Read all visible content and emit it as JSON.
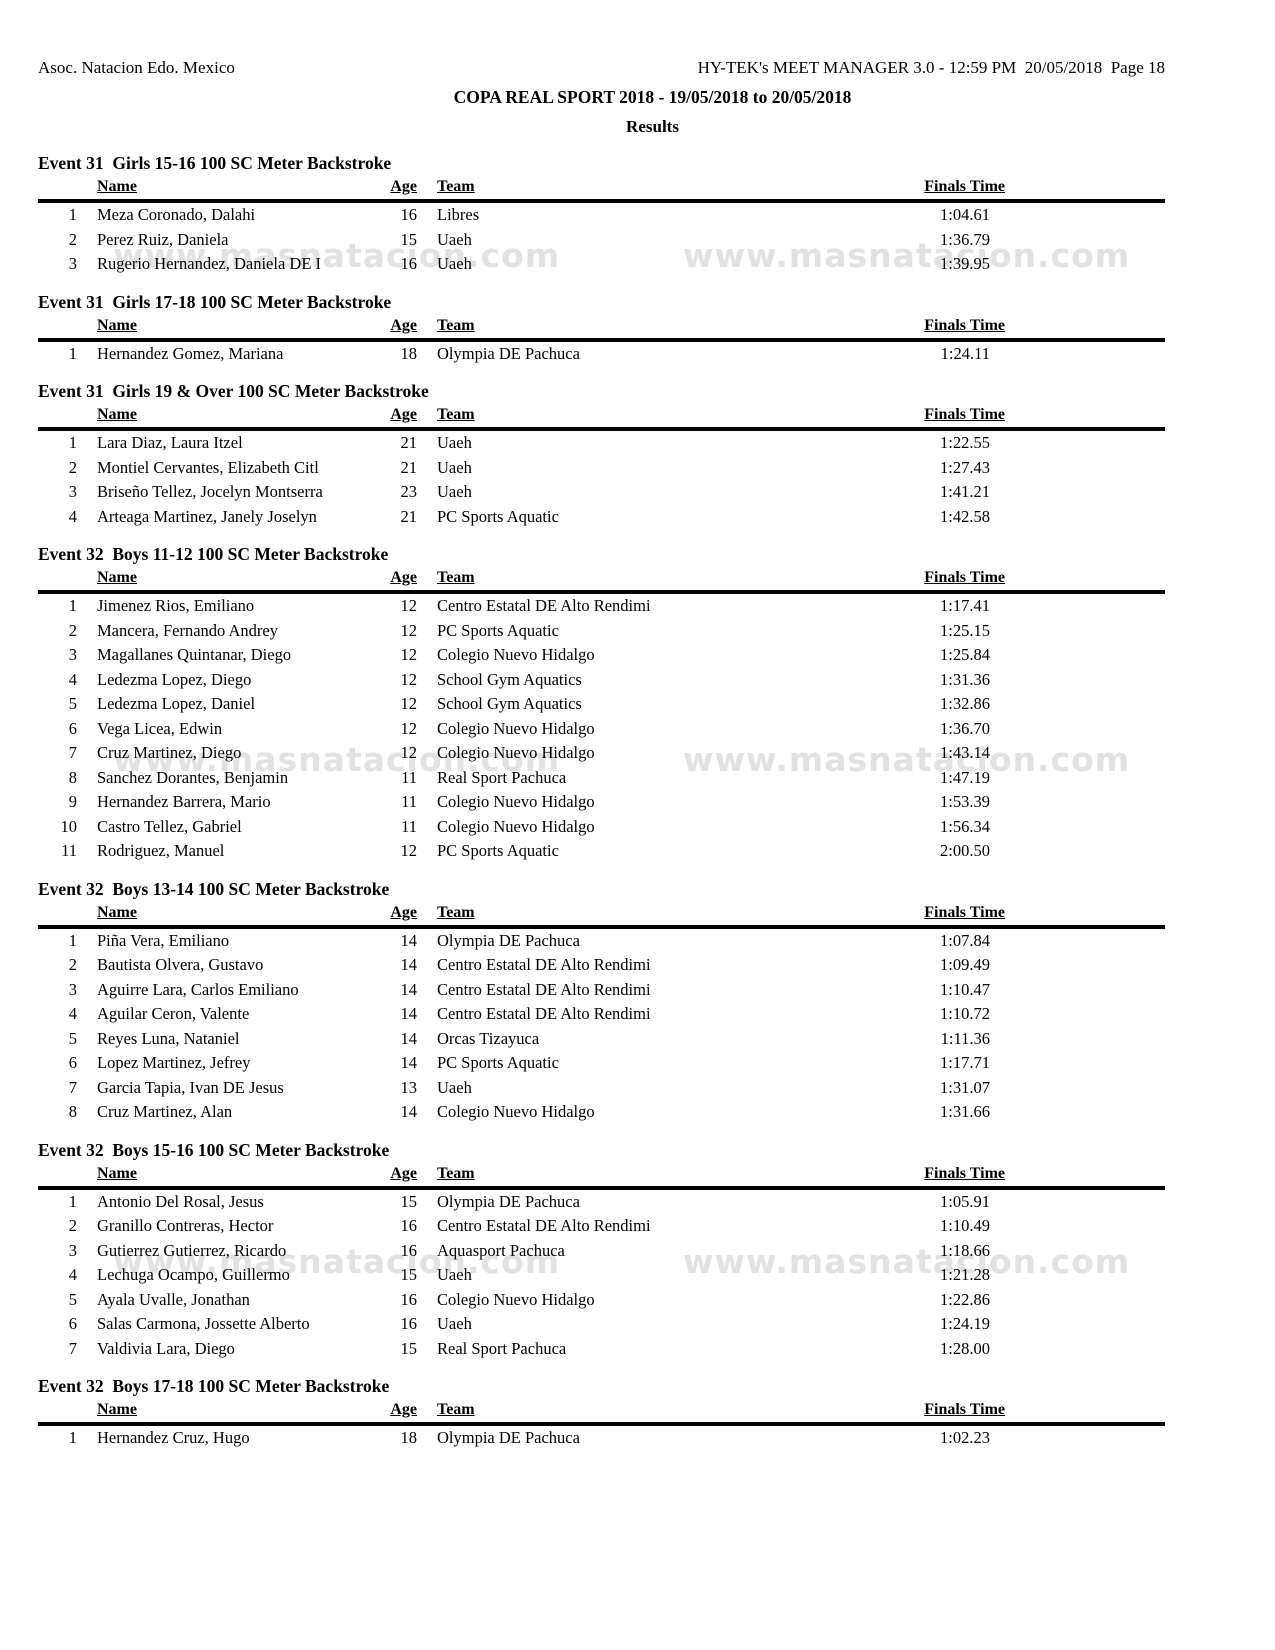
{
  "page": {
    "org": "Asoc. Natacion Edo. Mexico",
    "system": "HY-TEK's MEET MANAGER 3.0 - 12:59 PM  20/05/2018  Page 18",
    "title": "COPA REAL SPORT 2018 - 19/05/2018 to 20/05/2018",
    "subtitle": "Results"
  },
  "table_headers": {
    "name": "Name",
    "age": "Age",
    "team": "Team",
    "finals": "Finals Time"
  },
  "watermark": {
    "text": "www.masnatacion.com",
    "color": "#e2e2e2"
  },
  "sections": [
    {
      "heading": "Event 31  Girls 15-16 100 SC Meter Backstroke",
      "rows": [
        {
          "place": "1",
          "name": "Meza Coronado, Dalahi",
          "age": "16",
          "team": "Libres",
          "time": "1:04.61"
        },
        {
          "place": "2",
          "name": "Perez Ruiz, Daniela",
          "age": "15",
          "team": "Uaeh",
          "time": "1:36.79"
        },
        {
          "place": "3",
          "name": "Rugerio Hernandez, Daniela DE I",
          "age": "16",
          "team": "Uaeh",
          "time": "1:39.95"
        }
      ]
    },
    {
      "heading": "Event 31  Girls 17-18 100 SC Meter Backstroke",
      "rows": [
        {
          "place": "1",
          "name": "Hernandez Gomez, Mariana",
          "age": "18",
          "team": "Olympia DE Pachuca",
          "time": "1:24.11"
        }
      ]
    },
    {
      "heading": "Event 31  Girls 19 & Over 100 SC Meter Backstroke",
      "rows": [
        {
          "place": "1",
          "name": "Lara Diaz, Laura Itzel",
          "age": "21",
          "team": "Uaeh",
          "time": "1:22.55"
        },
        {
          "place": "2",
          "name": "Montiel Cervantes, Elizabeth Citl",
          "age": "21",
          "team": "Uaeh",
          "time": "1:27.43"
        },
        {
          "place": "3",
          "name": "Briseño Tellez, Jocelyn Montserra",
          "age": "23",
          "team": "Uaeh",
          "time": "1:41.21"
        },
        {
          "place": "4",
          "name": "Arteaga Martinez, Janely Joselyn",
          "age": "21",
          "team": "PC Sports Aquatic",
          "time": "1:42.58"
        }
      ]
    },
    {
      "heading": "Event 32  Boys 11-12 100 SC Meter Backstroke",
      "rows": [
        {
          "place": "1",
          "name": "Jimenez Rios, Emiliano",
          "age": "12",
          "team": "Centro Estatal DE Alto Rendimi",
          "time": "1:17.41"
        },
        {
          "place": "2",
          "name": "Mancera, Fernando Andrey",
          "age": "12",
          "team": "PC Sports Aquatic",
          "time": "1:25.15"
        },
        {
          "place": "3",
          "name": "Magallanes Quintanar, Diego",
          "age": "12",
          "team": "Colegio Nuevo Hidalgo",
          "time": "1:25.84"
        },
        {
          "place": "4",
          "name": "Ledezma Lopez, Diego",
          "age": "12",
          "team": "School Gym Aquatics",
          "time": "1:31.36"
        },
        {
          "place": "5",
          "name": "Ledezma Lopez, Daniel",
          "age": "12",
          "team": "School Gym Aquatics",
          "time": "1:32.86"
        },
        {
          "place": "6",
          "name": "Vega Licea, Edwin",
          "age": "12",
          "team": "Colegio Nuevo Hidalgo",
          "time": "1:36.70"
        },
        {
          "place": "7",
          "name": "Cruz Martinez, Diego",
          "age": "12",
          "team": "Colegio Nuevo Hidalgo",
          "time": "1:43.14"
        },
        {
          "place": "8",
          "name": "Sanchez Dorantes, Benjamin",
          "age": "11",
          "team": "Real Sport Pachuca",
          "time": "1:47.19"
        },
        {
          "place": "9",
          "name": "Hernandez Barrera, Mario",
          "age": "11",
          "team": "Colegio Nuevo Hidalgo",
          "time": "1:53.39"
        },
        {
          "place": "10",
          "name": "Castro Tellez, Gabriel",
          "age": "11",
          "team": "Colegio Nuevo Hidalgo",
          "time": "1:56.34"
        },
        {
          "place": "11",
          "name": "Rodriguez, Manuel",
          "age": "12",
          "team": "PC Sports Aquatic",
          "time": "2:00.50"
        }
      ]
    },
    {
      "heading": "Event 32  Boys 13-14 100 SC Meter Backstroke",
      "rows": [
        {
          "place": "1",
          "name": "Piña Vera, Emiliano",
          "age": "14",
          "team": "Olympia DE Pachuca",
          "time": "1:07.84"
        },
        {
          "place": "2",
          "name": "Bautista Olvera, Gustavo",
          "age": "14",
          "team": "Centro Estatal DE Alto Rendimi",
          "time": "1:09.49"
        },
        {
          "place": "3",
          "name": "Aguirre Lara, Carlos Emiliano",
          "age": "14",
          "team": "Centro Estatal DE Alto Rendimi",
          "time": "1:10.47"
        },
        {
          "place": "4",
          "name": "Aguilar Ceron, Valente",
          "age": "14",
          "team": "Centro Estatal DE Alto Rendimi",
          "time": "1:10.72"
        },
        {
          "place": "5",
          "name": "Reyes Luna, Nataniel",
          "age": "14",
          "team": "Orcas Tizayuca",
          "time": "1:11.36"
        },
        {
          "place": "6",
          "name": "Lopez Martinez, Jefrey",
          "age": "14",
          "team": "PC Sports Aquatic",
          "time": "1:17.71"
        },
        {
          "place": "7",
          "name": "Garcia Tapia, Ivan DE Jesus",
          "age": "13",
          "team": "Uaeh",
          "time": "1:31.07"
        },
        {
          "place": "8",
          "name": "Cruz Martinez, Alan",
          "age": "14",
          "team": "Colegio Nuevo Hidalgo",
          "time": "1:31.66"
        }
      ]
    },
    {
      "heading": "Event 32  Boys 15-16 100 SC Meter Backstroke",
      "rows": [
        {
          "place": "1",
          "name": "Antonio Del Rosal, Jesus",
          "age": "15",
          "team": "Olympia DE Pachuca",
          "time": "1:05.91"
        },
        {
          "place": "2",
          "name": "Granillo Contreras, Hector",
          "age": "16",
          "team": "Centro Estatal DE Alto Rendimi",
          "time": "1:10.49"
        },
        {
          "place": "3",
          "name": "Gutierrez Gutierrez, Ricardo",
          "age": "16",
          "team": "Aquasport Pachuca",
          "time": "1:18.66"
        },
        {
          "place": "4",
          "name": "Lechuga Ocampo, Guillermo",
          "age": "15",
          "team": "Uaeh",
          "time": "1:21.28"
        },
        {
          "place": "5",
          "name": "Ayala Uvalle, Jonathan",
          "age": "16",
          "team": "Colegio Nuevo Hidalgo",
          "time": "1:22.86"
        },
        {
          "place": "6",
          "name": "Salas Carmona, Jossette Alberto",
          "age": "16",
          "team": "Uaeh",
          "time": "1:24.19"
        },
        {
          "place": "7",
          "name": "Valdivia Lara, Diego",
          "age": "15",
          "team": "Real Sport Pachuca",
          "time": "1:28.00"
        }
      ]
    },
    {
      "heading": "Event 32  Boys 17-18 100 SC Meter Backstroke",
      "rows": [
        {
          "place": "1",
          "name": "Hernandez Cruz, Hugo",
          "age": "18",
          "team": "Olympia DE Pachuca",
          "time": "1:02.23"
        }
      ]
    }
  ]
}
